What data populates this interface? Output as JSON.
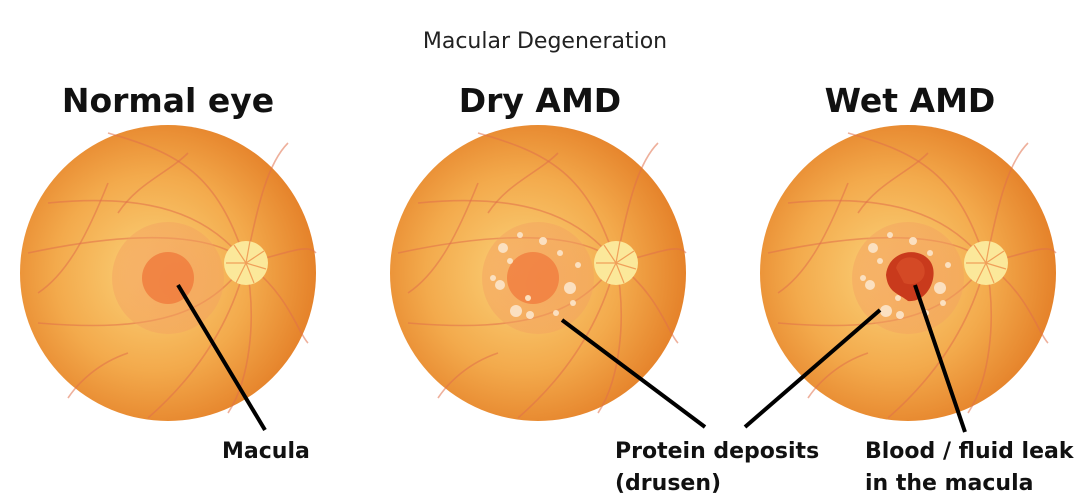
{
  "title": "Macular Degeneration",
  "panels": [
    {
      "heading": "Normal eye",
      "labels": [
        "Macula"
      ]
    },
    {
      "heading": "Dry AMD",
      "labels": [
        "Protein deposits",
        "(drusen)"
      ]
    },
    {
      "heading": "Wet AMD",
      "labels": [
        "Blood / fluid leak",
        "in the macula"
      ]
    }
  ],
  "colors": {
    "fundus_center": "#f9c96a",
    "fundus_edge": "#e8862a",
    "macula": "#f07a3c",
    "optic_disc": "#fbe89a",
    "blood": "#c93a1c",
    "drusen": "#fbe0c0"
  }
}
